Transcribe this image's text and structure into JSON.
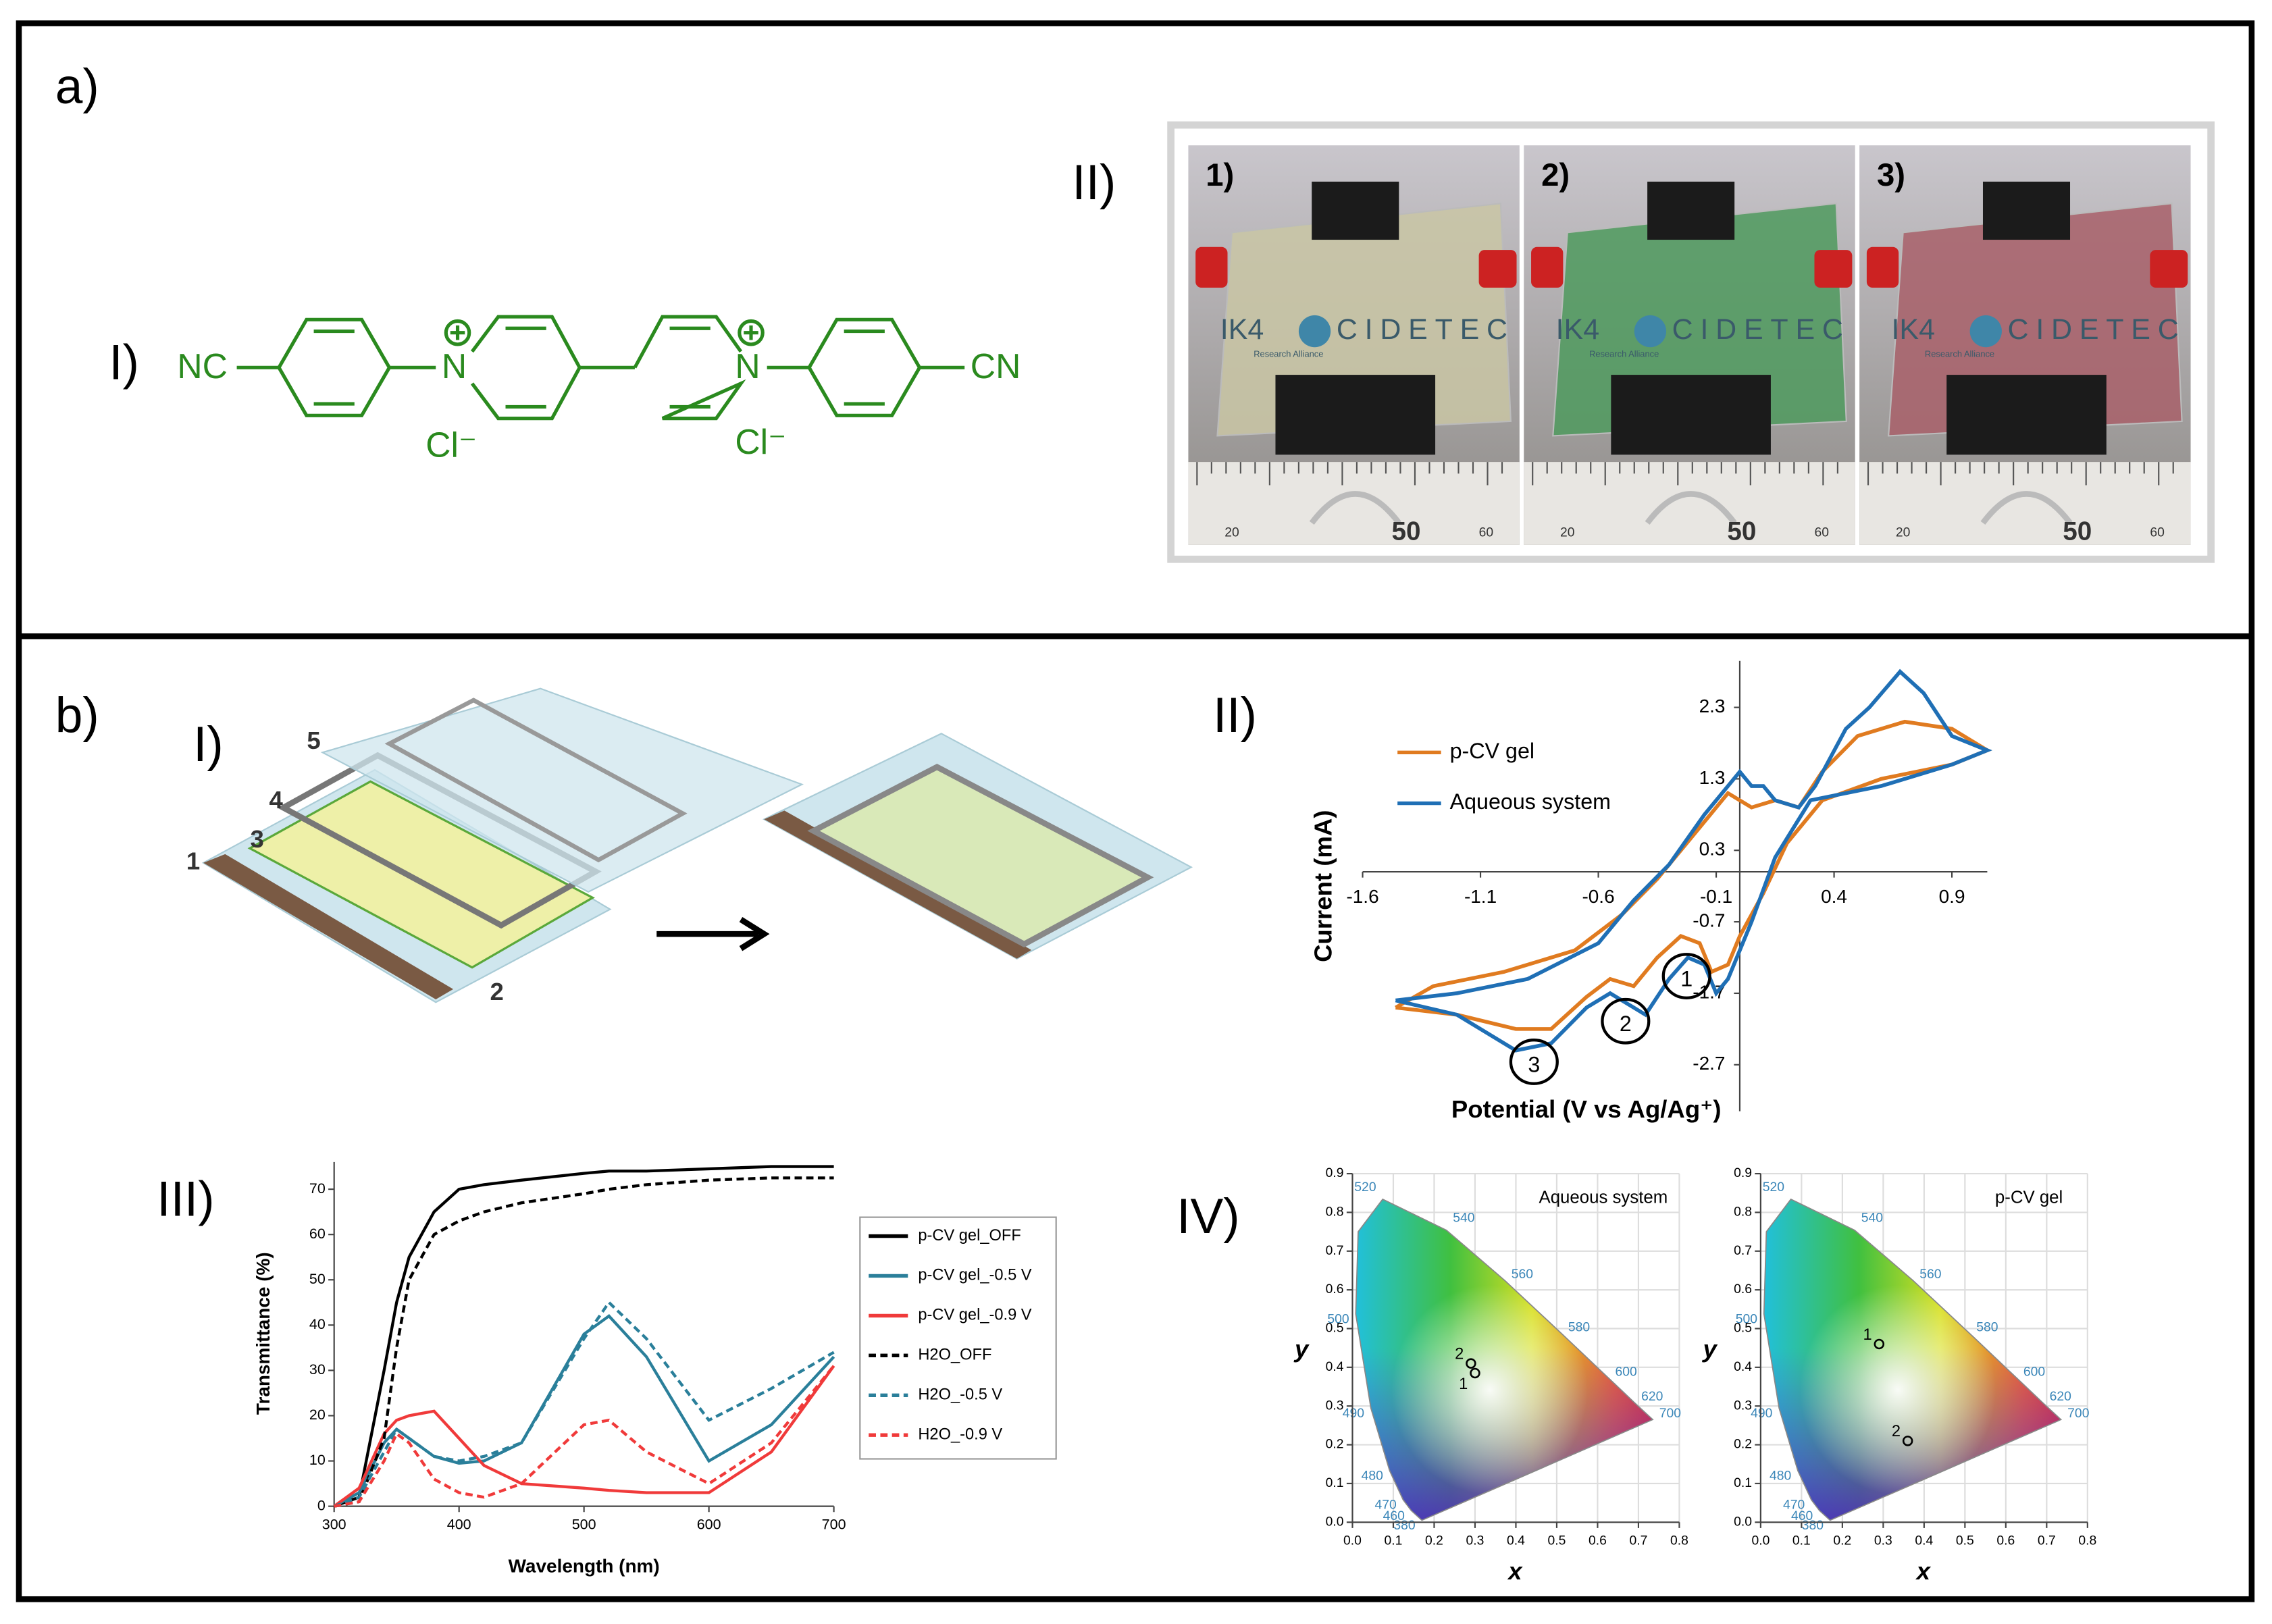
{
  "panel_a": {
    "label": "a)",
    "part_I": "I)",
    "part_II": "II)",
    "molecule": {
      "left": "NC",
      "right": "CN",
      "n1": "N",
      "n2": "N",
      "counter1": "Cl⁻",
      "counter2": "Cl⁻"
    },
    "photos": [
      {
        "label": "1)",
        "logo_a": "IK4",
        "logo_b": "CIDETEC",
        "logo_sub": "Research Alliance",
        "ruler": [
          "20",
          "50",
          "60"
        ]
      },
      {
        "label": "2)",
        "logo_a": "IK4",
        "logo_b": "CIDETEC",
        "logo_sub": "Research Alliance",
        "ruler": [
          "20",
          "50",
          "60"
        ]
      },
      {
        "label": "3)",
        "logo_a": "IK4",
        "logo_b": "CIDETEC",
        "logo_sub": "Research Alliance",
        "ruler": [
          "20",
          "50",
          "60"
        ]
      }
    ]
  },
  "panel_b": {
    "label": "b)",
    "part_I": "I)",
    "part_II": "II)",
    "part_III": "III)",
    "part_IV": "IV)",
    "layers": [
      "1",
      "2",
      "3",
      "4",
      "5"
    ]
  },
  "chart_data": [
    {
      "type": "line",
      "x_label": "Potential (V vs Ag/Ag⁺)",
      "y_label": "Current (mA)",
      "legend": "upper left",
      "axes_cross": "origin",
      "xlim": [
        -1.6,
        1.05
      ],
      "ylim": [
        -3.35,
        2.95
      ],
      "xticks": [
        -1.6,
        -1.1,
        -0.6,
        -0.1,
        0.4,
        0.9
      ],
      "yticks": [
        2.3,
        1.3,
        0.3,
        -0.7,
        -1.7,
        -2.7
      ],
      "annotations": [
        "1",
        "2",
        "3"
      ],
      "series": [
        {
          "name": "p-CV gel",
          "color": "#e07b20",
          "x": [
            -1.46,
            -1.3,
            -1.0,
            -0.7,
            -0.5,
            -0.35,
            -0.2,
            -0.1,
            -0.05,
            0.05,
            0.15,
            0.25,
            0.35,
            0.5,
            0.7,
            0.9,
            1.05,
            0.9,
            0.6,
            0.35,
            0.2,
            0.1,
            0.0,
            -0.05,
            -0.12,
            -0.17,
            -0.25,
            -0.35,
            -0.45,
            -0.55,
            -0.65,
            -0.8,
            -0.95,
            -1.2,
            -1.46
          ],
          "values": [
            -1.9,
            -1.6,
            -1.4,
            -1.1,
            -0.6,
            -0.1,
            0.5,
            0.9,
            1.1,
            0.9,
            1.0,
            0.9,
            1.4,
            1.9,
            2.1,
            2.0,
            1.7,
            1.5,
            1.3,
            1.0,
            0.4,
            -0.3,
            -0.9,
            -1.3,
            -1.4,
            -1.0,
            -0.9,
            -1.2,
            -1.6,
            -1.5,
            -1.75,
            -2.2,
            -2.2,
            -2.0,
            -1.9
          ]
        },
        {
          "name": "Aqueous system",
          "color": "#1f6fb5",
          "x": [
            -1.46,
            -1.2,
            -0.9,
            -0.6,
            -0.45,
            -0.3,
            -0.15,
            -0.05,
            0.0,
            0.05,
            0.1,
            0.15,
            0.25,
            0.32,
            0.45,
            0.55,
            0.68,
            0.78,
            0.9,
            1.05,
            0.9,
            0.6,
            0.3,
            0.15,
            0.05,
            -0.05,
            -0.1,
            -0.15,
            -0.22,
            -0.3,
            -0.4,
            -0.55,
            -0.65,
            -0.8,
            -0.95,
            -1.2,
            -1.46
          ],
          "values": [
            -1.8,
            -1.7,
            -1.5,
            -1.0,
            -0.4,
            0.1,
            0.8,
            1.2,
            1.4,
            1.2,
            1.2,
            1.0,
            0.9,
            1.2,
            2.0,
            2.3,
            2.8,
            2.5,
            1.9,
            1.7,
            1.5,
            1.2,
            1.0,
            0.2,
            -0.7,
            -1.5,
            -1.7,
            -1.3,
            -1.2,
            -1.5,
            -2.0,
            -1.7,
            -1.9,
            -2.4,
            -2.5,
            -2.0,
            -1.8
          ]
        }
      ]
    },
    {
      "type": "line",
      "x_label": "Wavelength (nm)",
      "y_label": "Transmittance (%)",
      "legend": "right",
      "grid": false,
      "xlim": [
        300,
        700
      ],
      "ylim": [
        0,
        76
      ],
      "xticks": [
        300,
        400,
        500,
        600,
        700
      ],
      "yticks": [
        0,
        10,
        20,
        30,
        40,
        50,
        60,
        70
      ],
      "x": [
        300,
        320,
        340,
        350,
        360,
        380,
        400,
        420,
        450,
        500,
        520,
        550,
        600,
        650,
        700
      ],
      "series": [
        {
          "name": "p-CV gel_OFF",
          "color": "#000000",
          "dashed": false,
          "values": [
            0,
            2,
            30,
            45,
            55,
            65,
            70,
            71,
            72,
            73.5,
            74,
            74,
            74.5,
            75,
            75
          ]
        },
        {
          "name": "p-CV gel_-0.5 V",
          "color": "#2a7f9a",
          "dashed": false,
          "values": [
            0,
            3,
            14,
            17,
            15,
            11,
            9.5,
            10,
            14,
            38,
            42,
            33,
            10,
            18,
            33
          ]
        },
        {
          "name": "p-CV gel_-0.9 V",
          "color": "#f03a3a",
          "dashed": false,
          "values": [
            0,
            4,
            16,
            19,
            20,
            21,
            15,
            9,
            5,
            4,
            3.5,
            3,
            3,
            12,
            31
          ]
        },
        {
          "name": "H2O_OFF",
          "color": "#000000",
          "dashed": true,
          "values": [
            0,
            1,
            15,
            35,
            50,
            60,
            63,
            65,
            67,
            69,
            70,
            71,
            72,
            72.5,
            72.5
          ]
        },
        {
          "name": "H2O_-0.5 V",
          "color": "#2a7f9a",
          "dashed": true,
          "values": [
            0,
            2,
            12,
            17,
            15,
            11,
            10,
            11,
            14,
            37,
            45,
            37,
            19,
            26,
            34
          ]
        },
        {
          "name": "H2O_-0.9 V",
          "color": "#f03a3a",
          "dashed": true,
          "values": [
            0,
            1,
            10,
            16,
            14,
            6,
            3,
            2,
            5,
            18,
            19,
            12,
            5,
            14,
            31
          ]
        }
      ]
    },
    {
      "type": "scatter",
      "title": "Aqueous system",
      "x_label": "x",
      "y_label": "y",
      "grid": true,
      "xlim": [
        0,
        0.8
      ],
      "ylim": [
        0,
        0.9
      ],
      "xticks": [
        {
          "value": 0,
          "label": "0.0"
        },
        0.1,
        0.2,
        0.3,
        0.4,
        0.5,
        0.6,
        0.7,
        0.8
      ],
      "yticks": [
        {
          "value": 0,
          "label": "0.0"
        },
        0.1,
        0.2,
        0.3,
        0.4,
        0.5,
        0.6,
        0.7,
        0.8,
        0.9
      ],
      "wavelength_labels": [
        "380",
        "460",
        "470",
        "480",
        "490",
        "500",
        "520",
        "540",
        "560",
        "580",
        "600",
        "620",
        "700"
      ],
      "series": [
        {
          "name": "1",
          "color": "#000000",
          "x": [
            0.3
          ],
          "values": [
            0.385
          ]
        },
        {
          "name": "2",
          "color": "#000000",
          "x": [
            0.29
          ],
          "values": [
            0.41
          ]
        }
      ]
    },
    {
      "type": "scatter",
      "title": "p-CV gel",
      "x_label": "x",
      "y_label": "y",
      "grid": true,
      "xlim": [
        0,
        0.8
      ],
      "ylim": [
        0,
        0.9
      ],
      "xticks": [
        {
          "value": 0,
          "label": "0.0"
        },
        0.1,
        0.2,
        0.3,
        0.4,
        0.5,
        0.6,
        0.7,
        0.8
      ],
      "yticks": [
        {
          "value": 0,
          "label": "0.0"
        },
        0.1,
        0.2,
        0.3,
        0.4,
        0.5,
        0.6,
        0.7,
        0.8,
        0.9
      ],
      "wavelength_labels": [
        "380",
        "460",
        "470",
        "480",
        "490",
        "500",
        "520",
        "540",
        "560",
        "580",
        "600",
        "620",
        "700"
      ],
      "series": [
        {
          "name": "1",
          "color": "#000000",
          "x": [
            0.29
          ],
          "values": [
            0.46
          ]
        },
        {
          "name": "2",
          "color": "#000000",
          "x": [
            0.36
          ],
          "values": [
            0.21
          ]
        }
      ]
    }
  ]
}
